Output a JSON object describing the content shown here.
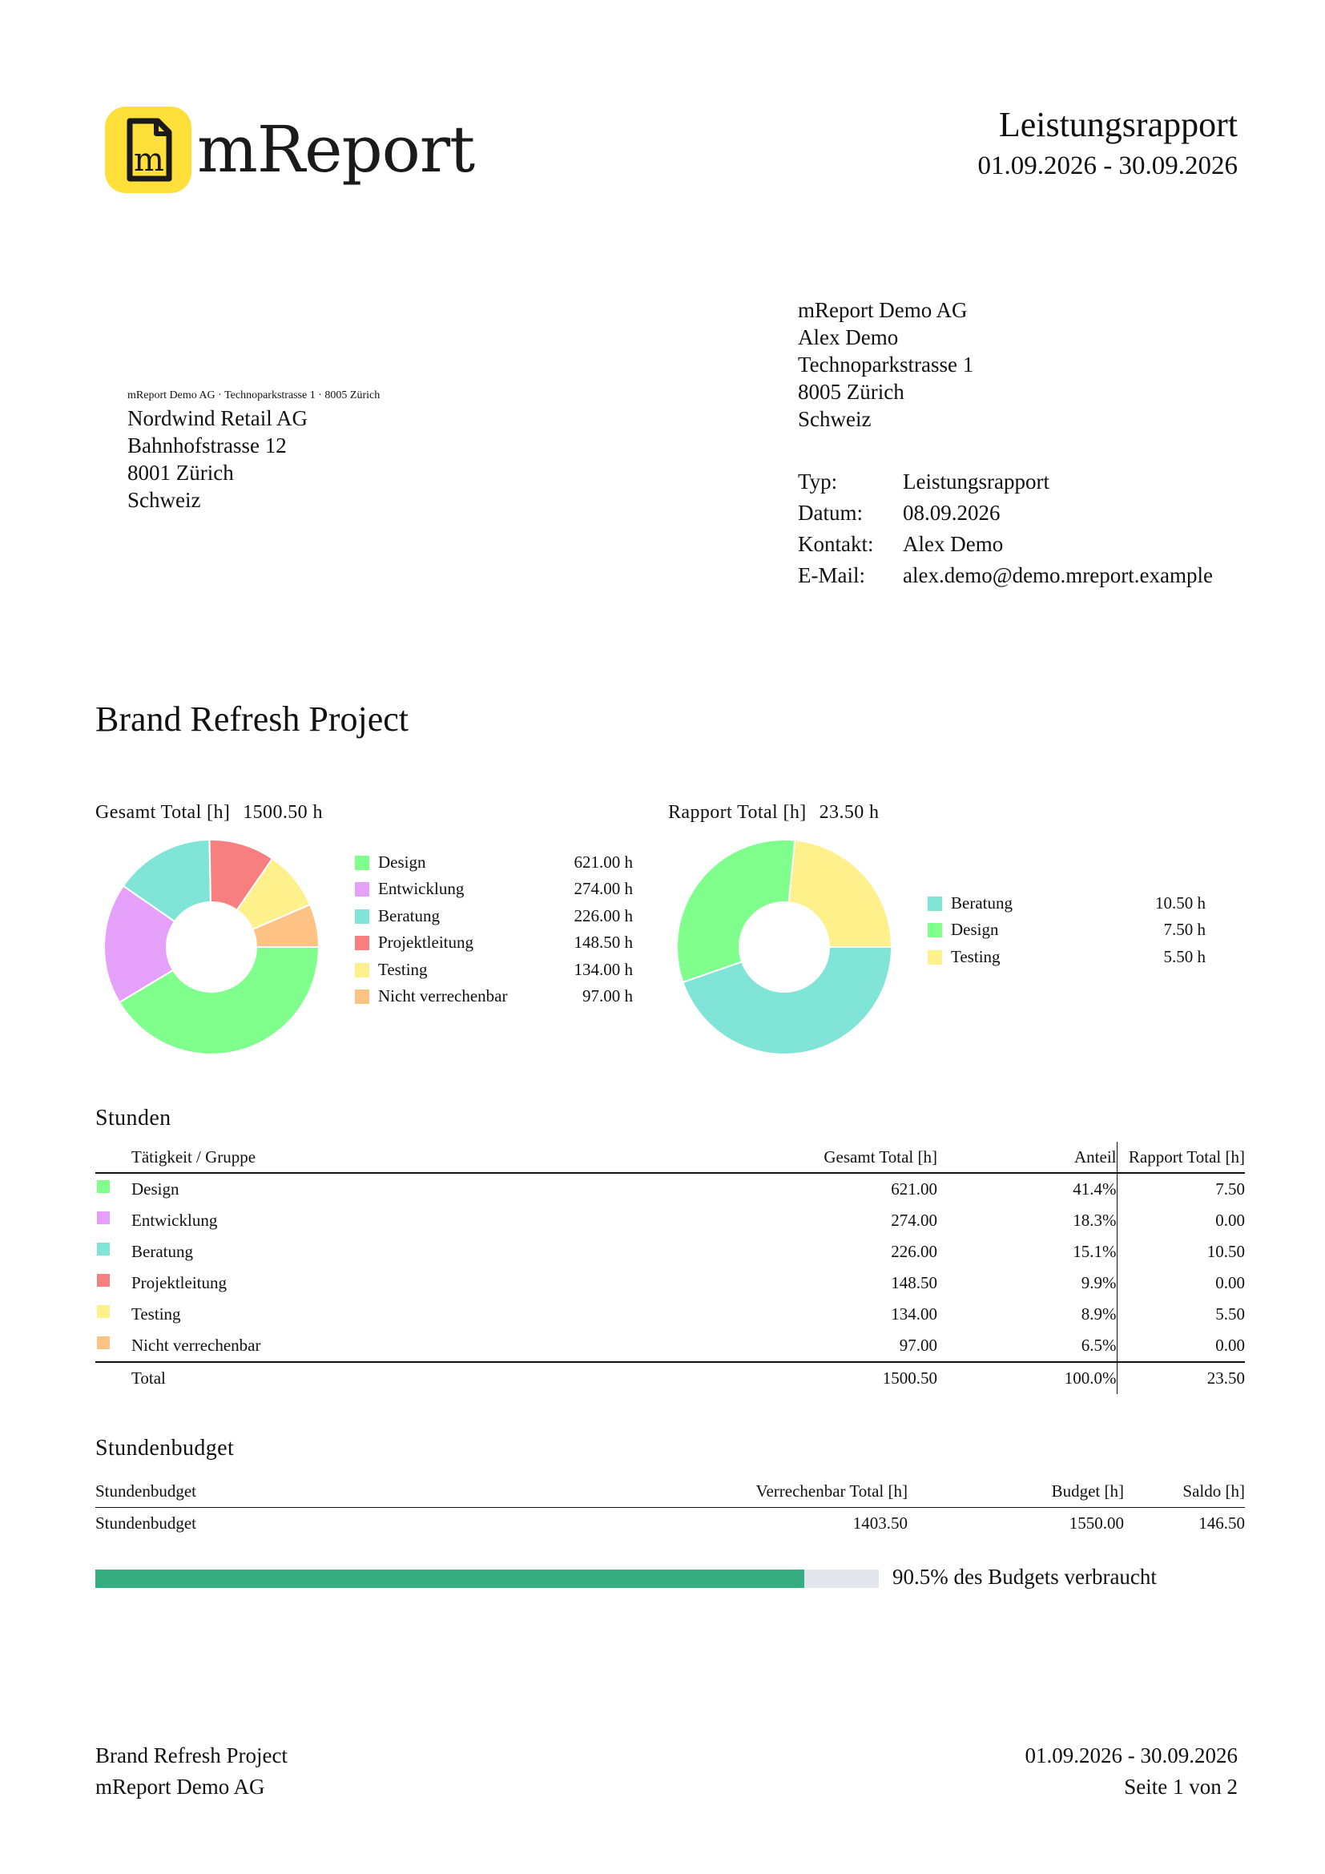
{
  "header": {
    "brand": "mReport",
    "logo_letter": "m",
    "title": "Leistungsrapport",
    "period": "01.09.2026 - 30.09.2026",
    "logo_color": "#FFE03A"
  },
  "sender_line": "mReport Demo AG · Technoparkstrasse 1 · 8005 Zürich",
  "recipient": {
    "name": "Nordwind Retail AG",
    "street": "Bahnhofstrasse 12",
    "city": "8001 Zürich",
    "country": "Schweiz"
  },
  "company": {
    "name": "mReport Demo AG",
    "person": "Alex Demo",
    "street": "Technoparkstrasse 1",
    "city": "8005 Zürich",
    "country": "Schweiz"
  },
  "meta": [
    {
      "key": "Typ:",
      "value": "Leistungsrapport"
    },
    {
      "key": "Datum:",
      "value": "08.09.2026"
    },
    {
      "key": "Kontakt:",
      "value": "Alex Demo"
    },
    {
      "key": "E-Mail:",
      "value": "alex.demo@demo.mreport.example"
    }
  ],
  "project_title": "Brand Refresh Project",
  "chart_data": [
    {
      "type": "pie",
      "donut": true,
      "title": "Gesamt Total [h]",
      "total_label": "1500.50 h",
      "categories": [
        "Design",
        "Entwicklung",
        "Beratung",
        "Projektleitung",
        "Testing",
        "Nicht verrechenbar"
      ],
      "values": [
        621.0,
        274.0,
        226.0,
        148.5,
        134.0,
        97.0
      ],
      "value_labels": [
        "621.00 h",
        "274.00 h",
        "226.00 h",
        "148.50 h",
        "134.00 h",
        "97.00 h"
      ],
      "colors": [
        "#80FF8C",
        "#E5A0FA",
        "#80E5D7",
        "#F77F7F",
        "#FEF08A",
        "#FFC285"
      ],
      "legend": "right"
    },
    {
      "type": "pie",
      "donut": true,
      "title": "Rapport Total [h]",
      "total_label": "23.50 h",
      "categories": [
        "Beratung",
        "Design",
        "Testing"
      ],
      "values": [
        10.5,
        7.5,
        5.5
      ],
      "value_labels": [
        "10.50 h",
        "7.50 h",
        "5.50 h"
      ],
      "colors": [
        "#80E5D7",
        "#80FF8C",
        "#FEF08A"
      ],
      "legend": "right"
    }
  ],
  "hours": {
    "title": "Stunden",
    "headers": [
      "Tätigkeit / Gruppe",
      "Gesamt Total [h]",
      "Anteil",
      "Rapport Total [h]"
    ],
    "rows": [
      {
        "label": "Design",
        "total": "621.00",
        "share": "41.4%",
        "rapport": "7.50",
        "color": "#80FF8C"
      },
      {
        "label": "Entwicklung",
        "total": "274.00",
        "share": "18.3%",
        "rapport": "0.00",
        "color": "#E5A0FA"
      },
      {
        "label": "Beratung",
        "total": "226.00",
        "share": "15.1%",
        "rapport": "10.50",
        "color": "#80E5D7"
      },
      {
        "label": "Projektleitung",
        "total": "148.50",
        "share": "9.9%",
        "rapport": "0.00",
        "color": "#F77F7F"
      },
      {
        "label": "Testing",
        "total": "134.00",
        "share": "8.9%",
        "rapport": "5.50",
        "color": "#FEF08A"
      },
      {
        "label": "Nicht verrechenbar",
        "total": "97.00",
        "share": "6.5%",
        "rapport": "0.00",
        "color": "#FFC285"
      }
    ],
    "total": {
      "label": "Total",
      "total": "1500.50",
      "share": "100.0%",
      "rapport": "23.50"
    }
  },
  "budget": {
    "title": "Stundenbudget",
    "headers": [
      "Stundenbudget",
      "Verrechenbar Total [h]",
      "Budget [h]",
      "Saldo [h]"
    ],
    "row": {
      "label": "Stundenbudget",
      "billable": "1403.50",
      "budget": "1550.00",
      "balance": "146.50"
    },
    "used_fraction": 0.905,
    "used_label": "90.5% des Budgets verbraucht",
    "bar_color": "#35AD80"
  },
  "footer": {
    "project": "Brand Refresh Project",
    "company": "mReport Demo AG",
    "period": "01.09.2026 - 30.09.2026",
    "page": "Seite 1 von 2"
  }
}
